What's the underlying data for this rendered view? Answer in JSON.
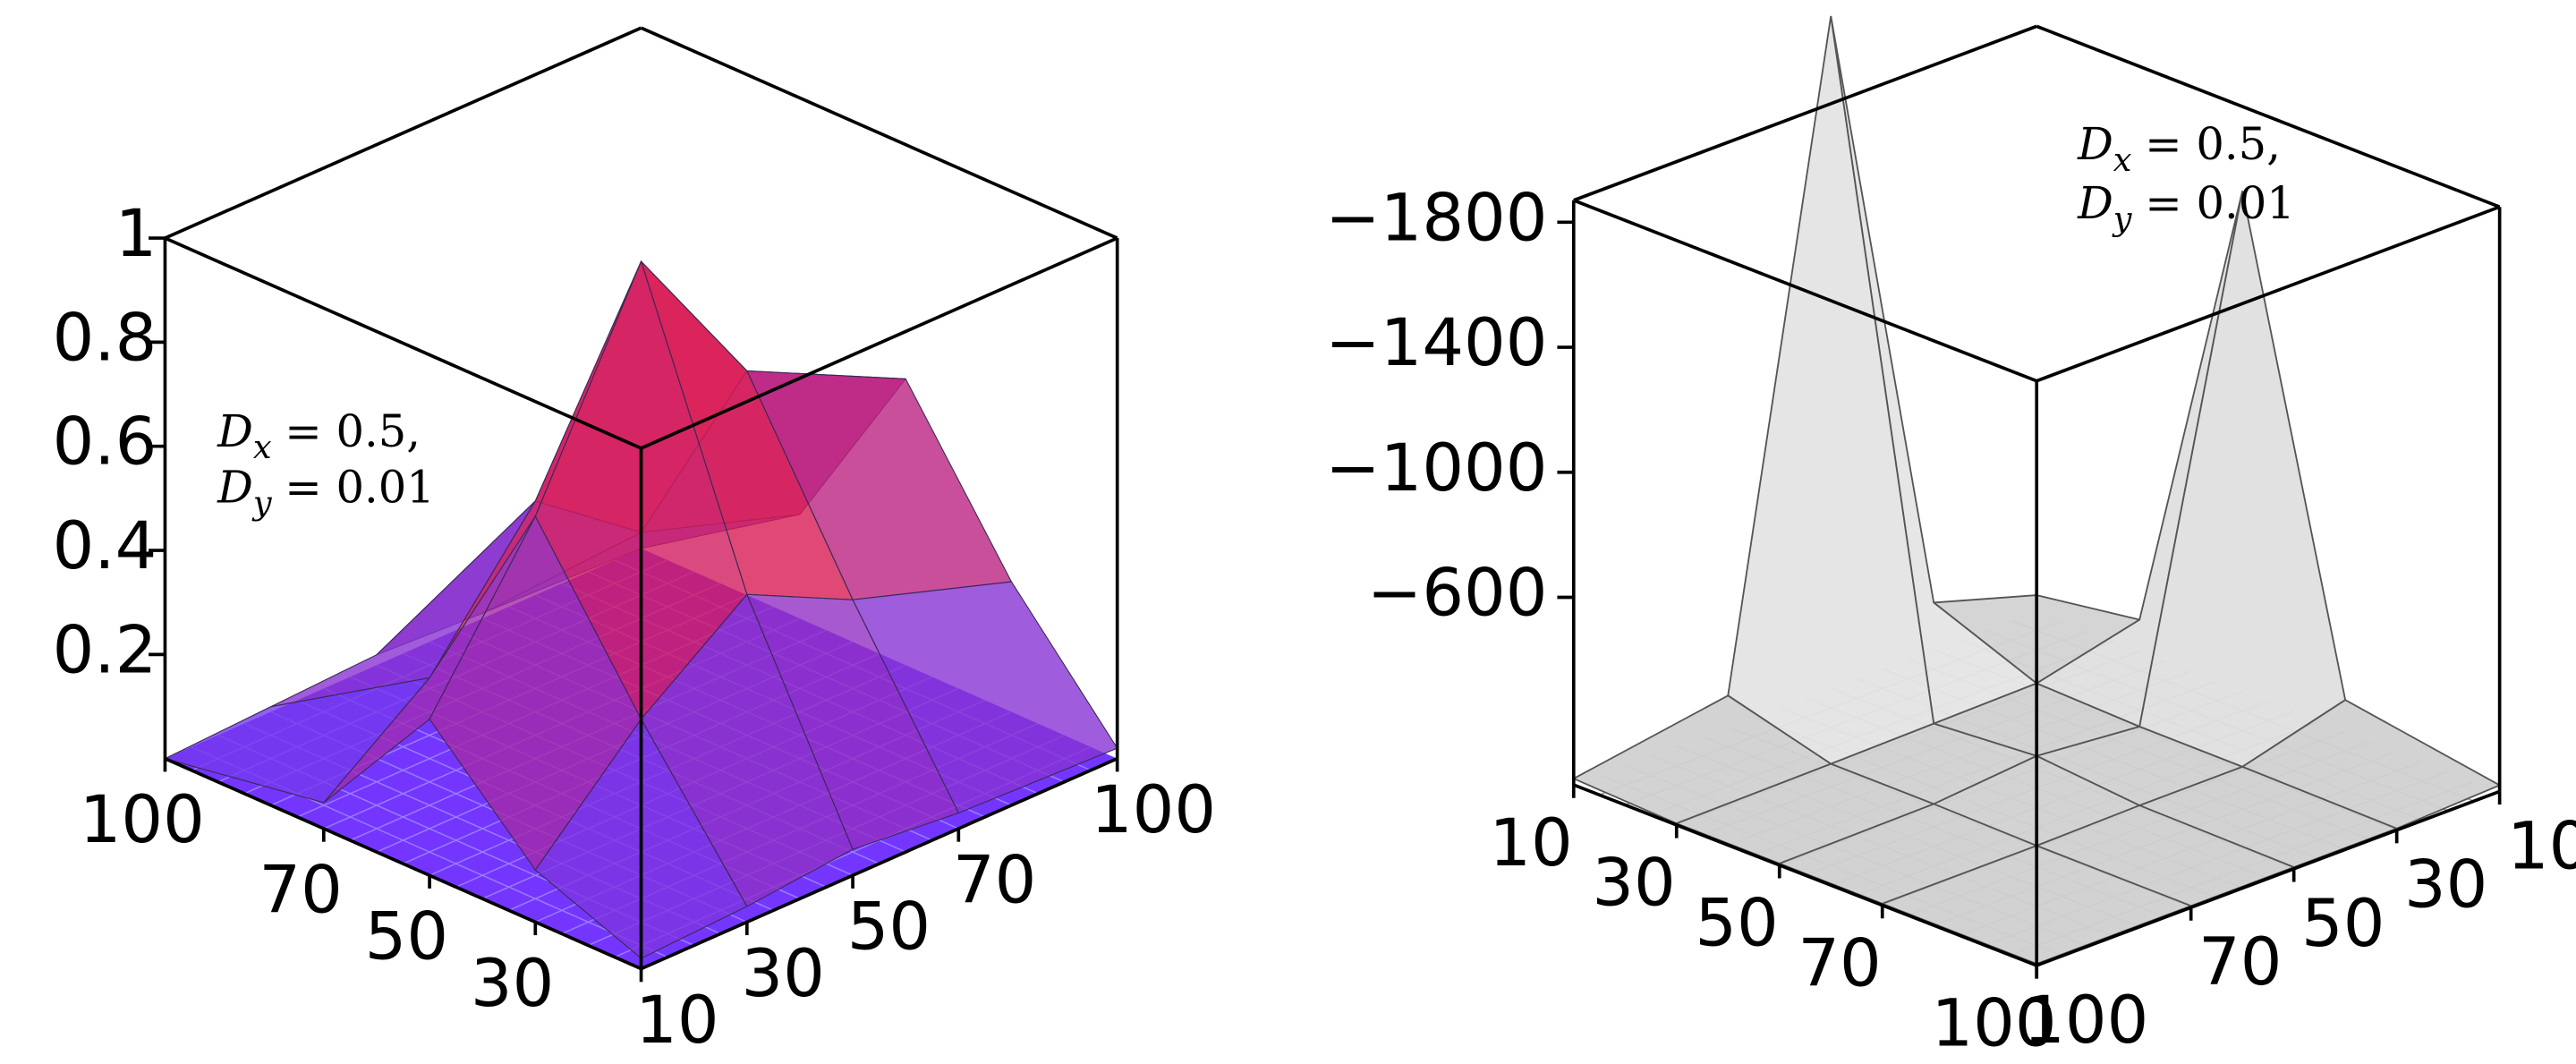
{
  "chart_data": [
    {
      "type": "surface",
      "x": [
        10,
        30,
        50,
        70,
        100
      ],
      "y": [
        10,
        30,
        50,
        70,
        100
      ],
      "values": [
        [
          0.02,
          0.03,
          0.05,
          0.03,
          0.02
        ],
        [
          0.1,
          0.3,
          0.45,
          0.35,
          0.25
        ],
        [
          0.3,
          0.6,
          1,
          0.7,
          0.55
        ],
        [
          0.05,
          0.2,
          0.45,
          0.3,
          0.2
        ],
        [
          0,
          0.01,
          0.02,
          0.01,
          0
        ]
      ],
      "xlim": [
        10,
        100
      ],
      "ylim": [
        10,
        100
      ],
      "zlim": [
        0,
        1
      ],
      "xticks": [
        10,
        30,
        50,
        70,
        100
      ],
      "yticks": [
        30,
        50,
        70,
        100
      ],
      "zticks": [
        0.2,
        0.4,
        0.6,
        0.8,
        1
      ],
      "colors": [
        "#6a3cff",
        "#e8163c"
      ],
      "annotation": [
        {
          "symbol": "D",
          "subscript": "x",
          "text": "= 0.5,"
        },
        {
          "symbol": "D",
          "subscript": "y",
          "text": "= 0.01"
        }
      ]
    },
    {
      "type": "surface",
      "x": [
        10,
        30,
        50,
        70,
        100
      ],
      "y": [
        10,
        30,
        50,
        70,
        100
      ],
      "values": [
        [
          -50,
          -100,
          -1600,
          -100,
          -20
        ],
        [
          -150,
          -20,
          -10,
          -10,
          -5
        ],
        [
          -2150,
          -15,
          -40,
          -10,
          -5
        ],
        [
          -100,
          -10,
          -10,
          -5,
          -5
        ],
        [
          -20,
          -5,
          -5,
          -5,
          -5
        ]
      ],
      "xlim": [
        10,
        100
      ],
      "ylim": [
        10,
        100
      ],
      "zlim": [
        0,
        -1870
      ],
      "xticks": [
        10,
        30,
        50,
        70,
        100
      ],
      "yticks": [
        10,
        30,
        50,
        70,
        100
      ],
      "zticks": [
        {
          "value": -1800,
          "label": "−1800"
        },
        {
          "value": -1400,
          "label": "−1400"
        },
        {
          "value": -1000,
          "label": "−1000"
        },
        {
          "value": -600,
          "label": "−600"
        }
      ],
      "colors": [
        "#ffffff",
        "#d0d0d0"
      ],
      "annotation": [
        {
          "symbol": "D",
          "subscript": "x",
          "text": "= 0.5,"
        },
        {
          "symbol": "D",
          "subscript": "y",
          "text": "= 0.01"
        }
      ]
    }
  ]
}
